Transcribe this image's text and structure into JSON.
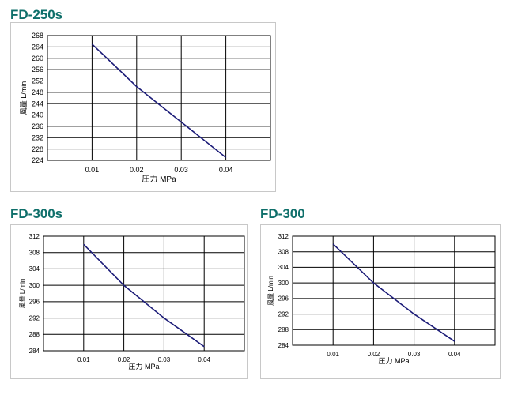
{
  "chart_data": [
    {
      "type": "line",
      "title": "FD-250s",
      "xlabel": "圧力 MPa",
      "ylabel": "風量 L/min",
      "x_ticks": [
        "0.01",
        "0.02",
        "0.03",
        "0.04"
      ],
      "y_ticks": [
        "268",
        "264",
        "260",
        "256",
        "252",
        "248",
        "244",
        "240",
        "236",
        "232",
        "228",
        "224"
      ],
      "xlim": [
        0,
        0.05
      ],
      "ylim": [
        224,
        268
      ],
      "grid": true,
      "series": [
        {
          "x": [
            0.01,
            0.02,
            0.03,
            0.04
          ],
          "y": [
            265,
            250,
            237.5,
            225
          ]
        }
      ]
    },
    {
      "type": "line",
      "title": "FD-300s",
      "xlabel": "圧力 MPa",
      "ylabel": "風量 L/min",
      "x_ticks": [
        "0.01",
        "0.02",
        "0.03",
        "0.04"
      ],
      "y_ticks": [
        "312",
        "308",
        "304",
        "300",
        "296",
        "292",
        "288",
        "284"
      ],
      "xlim": [
        0,
        0.05
      ],
      "ylim": [
        284,
        312
      ],
      "grid": true,
      "series": [
        {
          "x": [
            0.01,
            0.02,
            0.03,
            0.04
          ],
          "y": [
            310,
            300,
            292,
            285
          ]
        }
      ]
    },
    {
      "type": "line",
      "title": "FD-300",
      "xlabel": "圧力 MPa",
      "ylabel": "風量 L/min",
      "x_ticks": [
        "0.01",
        "0.02",
        "0.03",
        "0.04"
      ],
      "y_ticks": [
        "312",
        "308",
        "304",
        "300",
        "296",
        "292",
        "288",
        "284"
      ],
      "xlim": [
        0,
        0.05
      ],
      "ylim": [
        284,
        312
      ],
      "grid": true,
      "series": [
        {
          "x": [
            0.01,
            0.02,
            0.03,
            0.04
          ],
          "y": [
            310,
            300,
            292,
            285
          ]
        }
      ]
    }
  ],
  "colors": {
    "title": "#0e6f6a",
    "line": "#1c1c78",
    "frame": "#c8c8c8",
    "grid": "#000000"
  }
}
